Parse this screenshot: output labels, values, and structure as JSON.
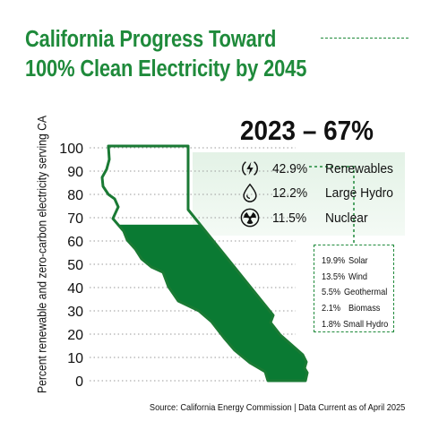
{
  "title": {
    "line1": "California Progress Toward",
    "line2": "100% Clean Electricity by 2045"
  },
  "headline": "2023 – 67%",
  "source": "Source: California Energy Commission | Data Current as of April 2025",
  "colors": {
    "brand_green": "#1f8a3b",
    "fill_green": "#0a7a33",
    "outline_green": "#1a7a34"
  },
  "chart_data": {
    "type": "area",
    "shape": "California state outline used as a 0-100 fill gauge",
    "ylabel": "Percent renewable and zero-carbon electricity serving CA",
    "ylim": [
      0,
      100
    ],
    "yticks": [
      0,
      10,
      20,
      30,
      40,
      50,
      60,
      70,
      80,
      90,
      100
    ],
    "grid": "dotted horizontal lines",
    "year": "2023",
    "fill_value": 67,
    "categories": [
      {
        "value": "42.9%",
        "label": "Renewables",
        "icon": "lightning-icon"
      },
      {
        "value": "12.2%",
        "label": "Large Hydro",
        "icon": "water-drop-icon"
      },
      {
        "value": "11.5%",
        "label": "Nuclear",
        "icon": "radiation-icon"
      }
    ],
    "renewables_breakdown": [
      {
        "value": "19.9%",
        "label": "Solar"
      },
      {
        "value": "13.5%",
        "label": "Wind"
      },
      {
        "value": "5.5%",
        "label": "Geothermal"
      },
      {
        "value": "2.1%",
        "label": "Biomass"
      },
      {
        "value": "1.8%",
        "label": "Small Hydro"
      }
    ]
  }
}
